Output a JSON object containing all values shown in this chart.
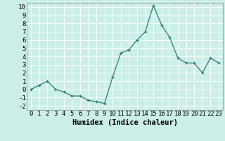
{
  "x": [
    0,
    1,
    2,
    3,
    4,
    5,
    6,
    7,
    8,
    9,
    10,
    11,
    12,
    13,
    14,
    15,
    16,
    17,
    18,
    19,
    20,
    21,
    22,
    23
  ],
  "y": [
    0,
    0.5,
    1.0,
    0.0,
    -0.3,
    -0.8,
    -0.8,
    -1.3,
    -1.5,
    -1.7,
    1.5,
    4.4,
    4.8,
    6.0,
    7.0,
    10.2,
    7.8,
    6.3,
    3.8,
    3.2,
    3.2,
    2.0,
    3.8,
    3.2
  ],
  "line_color": "#2e7d6e",
  "marker": "+",
  "markersize": 3,
  "linewidth": 0.9,
  "bg_color": "#cceee8",
  "grid_color": "#ffffff",
  "xlabel": "Humidex (Indice chaleur)",
  "xlim": [
    -0.5,
    23.5
  ],
  "ylim": [
    -2.5,
    10.5
  ],
  "yticks": [
    -2,
    -1,
    0,
    1,
    2,
    3,
    4,
    5,
    6,
    7,
    8,
    9,
    10
  ],
  "xticks": [
    0,
    1,
    2,
    3,
    4,
    5,
    6,
    7,
    8,
    9,
    10,
    11,
    12,
    13,
    14,
    15,
    16,
    17,
    18,
    19,
    20,
    21,
    22,
    23
  ],
  "xlabel_fontsize": 7.5,
  "tick_fontsize": 6.5
}
